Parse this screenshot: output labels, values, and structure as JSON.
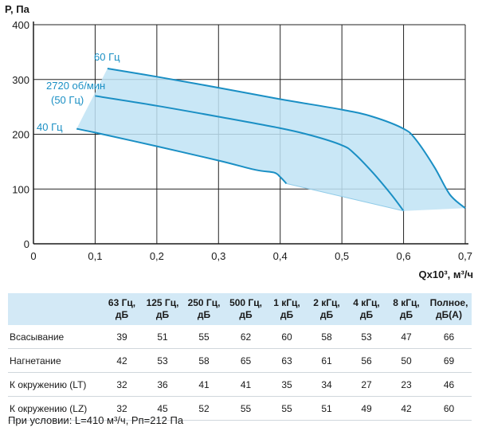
{
  "chart_data": {
    "type": "area",
    "ylabel": "P, Па",
    "xlabel": "Qx10³, м³/ч",
    "xlim": [
      0,
      0.7
    ],
    "ylim": [
      0,
      400
    ],
    "xticks": [
      "0",
      "0,1",
      "0,2",
      "0,3",
      "0,4",
      "0,5",
      "0,6",
      "0,7"
    ],
    "yticks": [
      "0",
      "100",
      "200",
      "300",
      "400"
    ],
    "grid": true,
    "colors": {
      "curve": "#1a8fc4",
      "fill": "#bfe3f5",
      "grid": "#222222"
    },
    "series": [
      {
        "name": "60 Гц",
        "points": [
          [
            0.12,
            320
          ],
          [
            0.2,
            305
          ],
          [
            0.3,
            285
          ],
          [
            0.4,
            264
          ],
          [
            0.5,
            245
          ],
          [
            0.55,
            232
          ],
          [
            0.6,
            210
          ],
          [
            0.62,
            190
          ],
          [
            0.65,
            140
          ],
          [
            0.675,
            90
          ],
          [
            0.7,
            65
          ]
        ]
      },
      {
        "name": "2720 об/мин (50 Гц)",
        "points": [
          [
            0.1,
            270
          ],
          [
            0.2,
            252
          ],
          [
            0.3,
            232
          ],
          [
            0.4,
            211
          ],
          [
            0.45,
            198
          ],
          [
            0.5,
            180
          ],
          [
            0.52,
            165
          ],
          [
            0.55,
            130
          ],
          [
            0.58,
            90
          ],
          [
            0.6,
            60
          ]
        ]
      },
      {
        "name": "40 Гц",
        "points": [
          [
            0.07,
            210
          ],
          [
            0.1,
            203
          ],
          [
            0.2,
            178
          ],
          [
            0.3,
            152
          ],
          [
            0.36,
            135
          ],
          [
            0.39,
            130
          ],
          [
            0.4,
            122
          ],
          [
            0.41,
            110
          ]
        ]
      }
    ],
    "region": [
      [
        0.12,
        320
      ],
      [
        0.2,
        305
      ],
      [
        0.3,
        285
      ],
      [
        0.4,
        264
      ],
      [
        0.5,
        245
      ],
      [
        0.55,
        232
      ],
      [
        0.6,
        210
      ],
      [
        0.62,
        190
      ],
      [
        0.65,
        140
      ],
      [
        0.675,
        90
      ],
      [
        0.7,
        65
      ],
      [
        0.6,
        60
      ],
      [
        0.41,
        110
      ],
      [
        0.4,
        122
      ],
      [
        0.39,
        130
      ],
      [
        0.36,
        135
      ],
      [
        0.3,
        152
      ],
      [
        0.2,
        178
      ],
      [
        0.1,
        203
      ],
      [
        0.07,
        210
      ]
    ]
  },
  "curve_labels": [
    "60 Гц",
    "2720 об/мин",
    "(50 Гц)",
    "40 Гц"
  ],
  "table": {
    "headers": [
      {
        "l1": "",
        "l2": ""
      },
      {
        "l1": "63 Гц,",
        "l2": "дБ"
      },
      {
        "l1": "125 Гц,",
        "l2": "дБ"
      },
      {
        "l1": "250 Гц,",
        "l2": "дБ"
      },
      {
        "l1": "500 Гц,",
        "l2": "дБ"
      },
      {
        "l1": "1 кГц,",
        "l2": "дБ"
      },
      {
        "l1": "2 кГц,",
        "l2": "дБ"
      },
      {
        "l1": "4 кГц,",
        "l2": "дБ"
      },
      {
        "l1": "8 кГц,",
        "l2": "дБ"
      },
      {
        "l1": "Полное,",
        "l2": "дБ(А)"
      }
    ],
    "rows": [
      {
        "label": "Всасывание",
        "values": [
          "39",
          "51",
          "55",
          "62",
          "60",
          "58",
          "53",
          "47",
          "66"
        ]
      },
      {
        "label": "Нагнетание",
        "values": [
          "42",
          "53",
          "58",
          "65",
          "63",
          "61",
          "56",
          "50",
          "69"
        ]
      },
      {
        "label": "К окружению (LT)",
        "values": [
          "32",
          "36",
          "41",
          "41",
          "35",
          "34",
          "27",
          "23",
          "46"
        ]
      },
      {
        "label": "К окружению (LZ)",
        "values": [
          "32",
          "45",
          "52",
          "55",
          "55",
          "51",
          "49",
          "42",
          "60"
        ]
      }
    ]
  },
  "condition": "При условии: L=410 м³/ч, Pп=212 Па"
}
